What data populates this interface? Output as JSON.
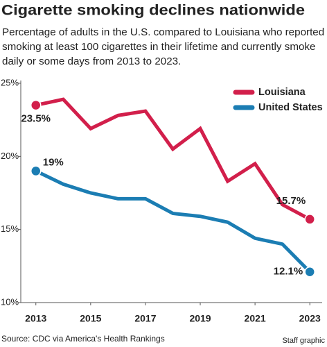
{
  "chart_data": {
    "type": "line",
    "title": "Cigarette smoking declines nationwide",
    "subtitle": "Percentage of adults in the U.S. compared to Louisiana who reported smoking at least 100 cigarettes in their lifetime and currently smoke daily or some days from 2013 to 2023.",
    "x": [
      2013,
      2014,
      2015,
      2016,
      2017,
      2018,
      2019,
      2020,
      2021,
      2022,
      2023
    ],
    "series": [
      {
        "name": "Louisiana",
        "color": "#d21f4b",
        "values": [
          23.5,
          23.9,
          21.9,
          22.8,
          23.1,
          20.5,
          21.9,
          18.3,
          19.5,
          16.7,
          15.7
        ],
        "value_labels": [
          "23.5%",
          null,
          null,
          null,
          null,
          null,
          null,
          null,
          null,
          null,
          "15.7%"
        ]
      },
      {
        "name": "United States",
        "color": "#1b7db3",
        "values": [
          19,
          18.1,
          17.5,
          17.1,
          17.1,
          16.1,
          15.9,
          15.5,
          14.4,
          14.0,
          12.1
        ],
        "value_labels": [
          "19%",
          null,
          null,
          null,
          null,
          null,
          null,
          null,
          null,
          null,
          "12.1%"
        ]
      }
    ],
    "xlim": [
      2012.45,
      2023.45
    ],
    "xticks": [
      2013,
      2015,
      2017,
      2019,
      2021,
      2023
    ],
    "ylim": [
      10,
      25
    ],
    "yticks": [
      {
        "value": 10,
        "label": "10%"
      },
      {
        "value": 15,
        "label": "15%"
      },
      {
        "value": 20,
        "label": "20%"
      },
      {
        "value": 25,
        "label": "25%"
      }
    ],
    "grid": false,
    "legend": "top-right",
    "source": "Source: CDC via America's Health Rankings",
    "credit": "Staff graphic"
  }
}
